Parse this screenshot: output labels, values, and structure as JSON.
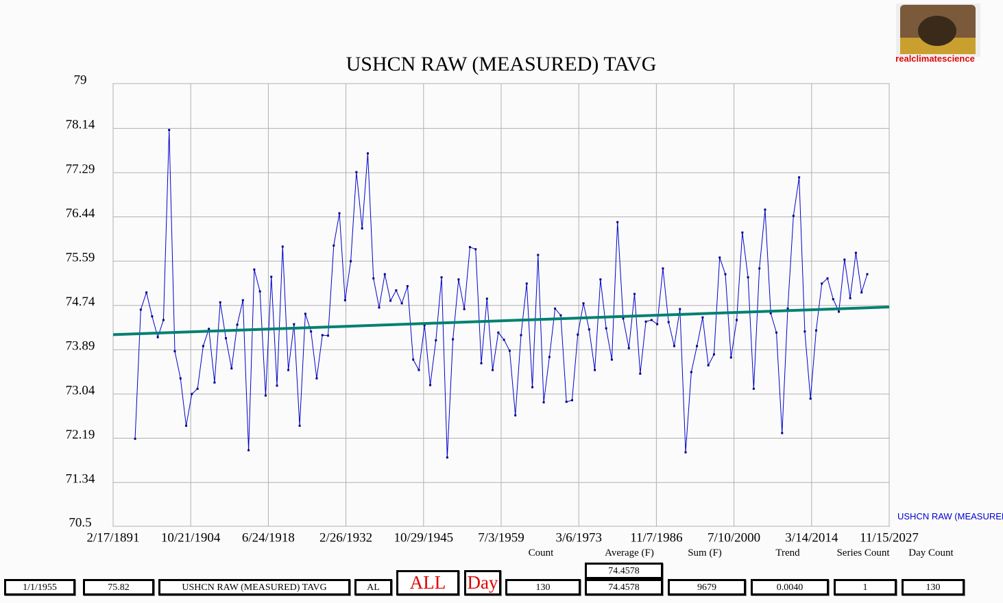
{
  "chart_data": {
    "type": "line",
    "title": "USHCN RAW (MEASURED) TAVG",
    "xlim": [
      1891.13,
      2027.87
    ],
    "xticks": [
      {
        "value": 1891.13,
        "label": "2/17/1891"
      },
      {
        "value": 1904.8,
        "label": "10/21/1904"
      },
      {
        "value": 1918.48,
        "label": "6/24/1918"
      },
      {
        "value": 1932.15,
        "label": "2/26/1932"
      },
      {
        "value": 1945.83,
        "label": "10/29/1945"
      },
      {
        "value": 1959.5,
        "label": "7/3/1959"
      },
      {
        "value": 1973.18,
        "label": "3/6/1973"
      },
      {
        "value": 1986.85,
        "label": "11/7/1986"
      },
      {
        "value": 2000.52,
        "label": "7/10/2000"
      },
      {
        "value": 2014.2,
        "label": "3/14/2014"
      },
      {
        "value": 2027.87,
        "label": "11/15/2027"
      }
    ],
    "ylim": [
      70.5,
      79
    ],
    "yticks": [
      70.5,
      71.34,
      72.19,
      73.04,
      73.89,
      74.74,
      75.59,
      76.44,
      77.29,
      78.14,
      79
    ],
    "grid": true,
    "series": [
      {
        "name": "USHCN RAW (MEASURED) TAVG",
        "color": "#0000cc",
        "x": [
          1895,
          1896,
          1897,
          1898,
          1899,
          1900,
          1901,
          1902,
          1903,
          1904,
          1905,
          1906,
          1907,
          1908,
          1909,
          1910,
          1911,
          1912,
          1913,
          1914,
          1915,
          1916,
          1917,
          1918,
          1919,
          1920,
          1921,
          1922,
          1923,
          1924,
          1925,
          1926,
          1927,
          1928,
          1929,
          1930,
          1931,
          1932,
          1933,
          1934,
          1935,
          1936,
          1937,
          1938,
          1939,
          1940,
          1941,
          1942,
          1943,
          1944,
          1945,
          1946,
          1947,
          1948,
          1949,
          1950,
          1951,
          1952,
          1953,
          1954,
          1955,
          1956,
          1957,
          1958,
          1959,
          1960,
          1961,
          1962,
          1963,
          1964,
          1965,
          1966,
          1967,
          1968,
          1969,
          1970,
          1971,
          1972,
          1973,
          1974,
          1975,
          1976,
          1977,
          1978,
          1979,
          1980,
          1981,
          1982,
          1983,
          1984,
          1985,
          1986,
          1987,
          1988,
          1989,
          1990,
          1991,
          1992,
          1993,
          1994,
          1995,
          1996,
          1997,
          1998,
          1999,
          2000,
          2001,
          2002,
          2003,
          2004,
          2005,
          2006,
          2007,
          2008,
          2009,
          2010,
          2011,
          2012,
          2013,
          2014,
          2015,
          2016,
          2017,
          2018,
          2019,
          2020,
          2021,
          2022,
          2023,
          2024
        ],
        "values": [
          72.18,
          74.66,
          74.99,
          74.53,
          74.13,
          74.46,
          78.11,
          73.86,
          73.34,
          72.43,
          73.04,
          73.14,
          73.96,
          74.29,
          73.26,
          74.8,
          74.11,
          73.53,
          74.37,
          74.84,
          71.96,
          75.43,
          75.01,
          73.01,
          75.29,
          73.2,
          75.87,
          73.5,
          74.38,
          72.43,
          74.58,
          74.24,
          73.34,
          74.17,
          74.16,
          75.89,
          76.51,
          74.84,
          75.59,
          77.3,
          76.22,
          77.66,
          75.26,
          74.7,
          75.34,
          74.83,
          75.03,
          74.78,
          75.11,
          73.7,
          73.5,
          74.36,
          73.21,
          74.07,
          75.28,
          71.82,
          74.09,
          75.24,
          74.67,
          75.86,
          75.82,
          73.63,
          74.87,
          73.5,
          74.22,
          74.08,
          73.87,
          72.63,
          74.17,
          75.16,
          73.17,
          75.71,
          72.88,
          73.75,
          74.68,
          74.55,
          72.89,
          72.92,
          74.18,
          74.78,
          74.28,
          73.5,
          75.24,
          74.3,
          73.7,
          76.34,
          74.49,
          73.92,
          74.96,
          73.43,
          74.43,
          74.46,
          74.38,
          75.45,
          74.42,
          73.96,
          74.67,
          71.92,
          73.46,
          73.96,
          74.51,
          73.59,
          73.8,
          75.66,
          75.34,
          73.74,
          74.46,
          76.14,
          75.28,
          73.14,
          75.45,
          76.58,
          74.59,
          74.22,
          72.29,
          74.68,
          76.46,
          77.2,
          74.24,
          72.95,
          74.26,
          75.16,
          75.26,
          74.86,
          74.62,
          75.62,
          74.88,
          75.75,
          74.99,
          75.34
        ]
      }
    ],
    "trend_line": {
      "color": "#008070",
      "x": [
        1891.13,
        2027.87
      ],
      "values": [
        74.18,
        74.71
      ]
    }
  },
  "logo_text": "realclimatescience",
  "panel": {
    "headers": [
      "Count",
      "Average (F)",
      "Sum (F)",
      "Trend",
      "Series Count",
      "Day Count"
    ],
    "average_top": "74.4578",
    "fields": [
      "1/1/1955",
      "75.82",
      "USHCN RAW (MEASURED) TAVG",
      "AL",
      "ALL",
      "Day",
      "130",
      "74.4578",
      "9679",
      "0.0040",
      "1",
      "130"
    ]
  }
}
